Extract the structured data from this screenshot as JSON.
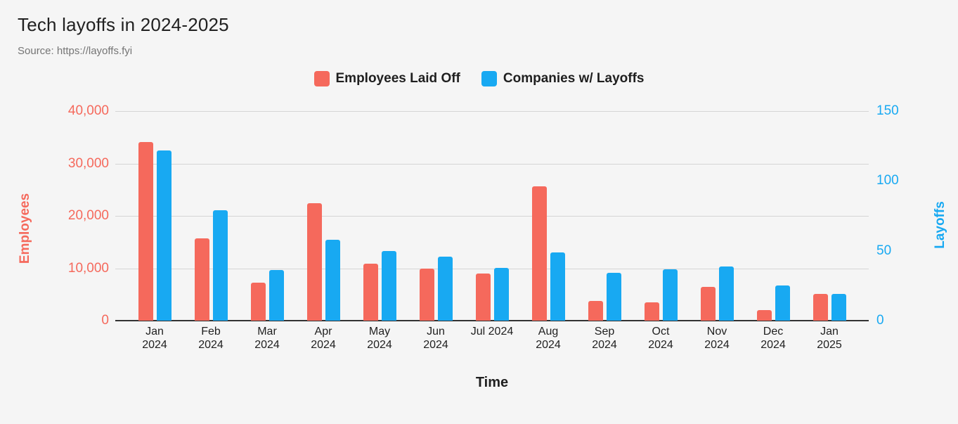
{
  "page": {
    "background_color": "#F5F5F5"
  },
  "header": {
    "title": "Tech layoffs in 2024-2025",
    "source": "Source: https://layoffs.fyi"
  },
  "legend": {
    "items": [
      {
        "label": "Employees Laid Off",
        "color": "#F5695C"
      },
      {
        "label": "Companies w/ Layoffs",
        "color": "#18A9F2"
      }
    ]
  },
  "chart_data": {
    "type": "bar",
    "title": "Tech layoffs in 2024-2025",
    "xlabel": "Time",
    "grid": "horizontal",
    "legend_position": "top",
    "categories": [
      "Jan 2024",
      "Feb 2024",
      "Mar 2024",
      "Apr 2024",
      "May 2024",
      "Jun 2024",
      "Jul 2024",
      "Aug 2024",
      "Sep 2024",
      "Oct 2024",
      "Nov 2024",
      "Dec 2024",
      "Jan 2025"
    ],
    "x_tick_lines": [
      [
        "Jan",
        "2024"
      ],
      [
        "Feb",
        "2024"
      ],
      [
        "Mar",
        "2024"
      ],
      [
        "Apr",
        "2024"
      ],
      [
        "May",
        "2024"
      ],
      [
        "Jun",
        "2024"
      ],
      [
        "Jul 2024"
      ],
      [
        "Aug",
        "2024"
      ],
      [
        "Sep",
        "2024"
      ],
      [
        "Oct",
        "2024"
      ],
      [
        "Nov",
        "2024"
      ],
      [
        "Dec",
        "2024"
      ],
      [
        "Jan",
        "2025"
      ]
    ],
    "series": [
      {
        "name": "Employees Laid Off",
        "axis": "left",
        "color": "#F5695C",
        "values": [
          34100,
          15700,
          7300,
          22400,
          10900,
          10000,
          9000,
          25700,
          3700,
          3500,
          6400,
          2000,
          5100
        ]
      },
      {
        "name": "Companies w/ Layoffs",
        "axis": "right",
        "color": "#18A9F2",
        "values": [
          122,
          79,
          36,
          58,
          50,
          46,
          38,
          49,
          34,
          37,
          39,
          25,
          19
        ]
      }
    ],
    "left_axis": {
      "label": "Employees",
      "min": 0,
      "max": 40000,
      "color": "#F5695C",
      "ticks": [
        {
          "label": "40,000",
          "value": 40000
        },
        {
          "label": "30,000",
          "value": 30000
        },
        {
          "label": "20,000",
          "value": 20000
        },
        {
          "label": "10,000",
          "value": 10000
        },
        {
          "label": "0",
          "value": 0
        }
      ]
    },
    "right_axis": {
      "label": "Layoffs",
      "min": 0,
      "max": 150,
      "color": "#18A9F2",
      "ticks": [
        {
          "label": "150",
          "value": 150
        },
        {
          "label": "100",
          "value": 100
        },
        {
          "label": "50",
          "value": 50
        },
        {
          "label": "0",
          "value": 0
        }
      ]
    }
  }
}
